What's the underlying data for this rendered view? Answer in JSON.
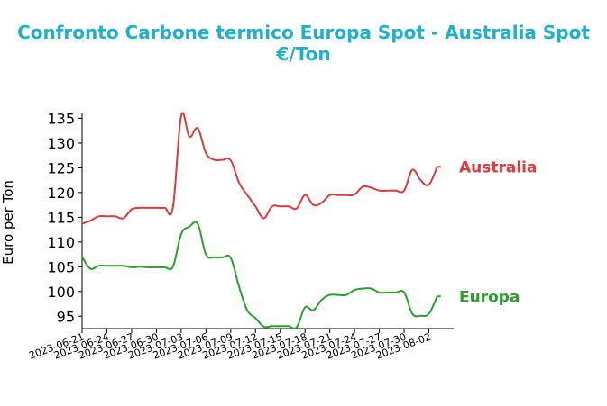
{
  "header": {
    "title_line1": "Confronto Carbone termico Europa Spot - Australia Spot",
    "title_line2": "€/Ton"
  },
  "chart_data": {
    "type": "line",
    "title": "Confronto Carbone termico Europa Spot - Australia Spot €/Ton",
    "xlabel": "",
    "ylabel": "Euro per Ton",
    "x_ticks": [
      "2023-06-21",
      "2023-06-24",
      "2023-06-27",
      "2023-06-30",
      "2023-07-03",
      "2023-07-06",
      "2023-07-09",
      "2023-07-12",
      "2023-07-15",
      "2023-07-18",
      "2023-07-21",
      "2023-07-24",
      "2023-07-27",
      "2023-07-30",
      "2023-08-02"
    ],
    "y_ticks": [
      95,
      100,
      105,
      110,
      115,
      120,
      125,
      130,
      135
    ],
    "ylim": [
      92.5,
      136
    ],
    "xlim": [
      "2023-06-21",
      "2023-08-05"
    ],
    "grid": false,
    "legend": "none; series names labeled at right end of lines",
    "colors": {
      "Australia": "#dc3b3b",
      "Europa": "#2ca02c"
    },
    "series": [
      {
        "name": "Australia",
        "x": [
          "2023-06-21",
          "2023-06-22",
          "2023-06-23",
          "2023-06-24",
          "2023-06-25",
          "2023-06-26",
          "2023-06-27",
          "2023-06-28",
          "2023-06-29",
          "2023-06-30",
          "2023-07-01",
          "2023-07-02",
          "2023-07-03",
          "2023-07-04",
          "2023-07-05",
          "2023-07-06",
          "2023-07-07",
          "2023-07-08",
          "2023-07-09",
          "2023-07-10",
          "2023-07-11",
          "2023-07-12",
          "2023-07-13",
          "2023-07-14",
          "2023-07-15",
          "2023-07-16",
          "2023-07-17",
          "2023-07-18",
          "2023-07-19",
          "2023-07-20",
          "2023-07-21",
          "2023-07-22",
          "2023-07-23",
          "2023-07-24",
          "2023-07-25",
          "2023-07-26",
          "2023-07-27",
          "2023-07-28",
          "2023-07-29",
          "2023-07-30",
          "2023-07-31",
          "2023-08-01",
          "2023-08-02",
          "2023-08-03"
        ],
        "values": [
          113.7,
          114.3,
          115.2,
          115.2,
          115.2,
          114.8,
          116.6,
          116.9,
          116.9,
          116.9,
          116.9,
          117.0,
          135.5,
          131.3,
          133.0,
          128.0,
          126.6,
          126.6,
          126.5,
          122.0,
          119.5,
          117.2,
          114.8,
          117.2,
          117.2,
          117.2,
          116.8,
          119.5,
          117.5,
          117.9,
          119.5,
          119.5,
          119.5,
          119.6,
          121.2,
          121.0,
          120.4,
          120.4,
          120.4,
          120.4,
          124.6,
          122.5,
          121.6,
          125.2
        ]
      },
      {
        "name": "Europa",
        "x": [
          "2023-06-21",
          "2023-06-22",
          "2023-06-23",
          "2023-06-24",
          "2023-06-25",
          "2023-06-26",
          "2023-06-27",
          "2023-06-28",
          "2023-06-29",
          "2023-06-30",
          "2023-07-01",
          "2023-07-02",
          "2023-07-03",
          "2023-07-04",
          "2023-07-05",
          "2023-07-06",
          "2023-07-07",
          "2023-07-08",
          "2023-07-09",
          "2023-07-10",
          "2023-07-11",
          "2023-07-12",
          "2023-07-13",
          "2023-07-14",
          "2023-07-15",
          "2023-07-16",
          "2023-07-17",
          "2023-07-18",
          "2023-07-19",
          "2023-07-20",
          "2023-07-21",
          "2023-07-22",
          "2023-07-23",
          "2023-07-24",
          "2023-07-25",
          "2023-07-26",
          "2023-07-27",
          "2023-07-28",
          "2023-07-29",
          "2023-07-30",
          "2023-07-31",
          "2023-08-01",
          "2023-08-02",
          "2023-08-03"
        ],
        "values": [
          107.0,
          104.6,
          105.2,
          105.2,
          105.2,
          105.2,
          104.9,
          105.0,
          104.9,
          104.9,
          104.9,
          105.0,
          111.6,
          113.1,
          113.7,
          107.5,
          106.9,
          106.9,
          106.8,
          101.0,
          96.2,
          94.6,
          92.9,
          93.0,
          93.0,
          93.0,
          92.8,
          96.8,
          96.2,
          98.3,
          99.3,
          99.3,
          99.3,
          100.3,
          100.6,
          100.6,
          99.8,
          99.8,
          99.8,
          99.8,
          95.5,
          95.1,
          95.5,
          99.0
        ]
      }
    ]
  }
}
